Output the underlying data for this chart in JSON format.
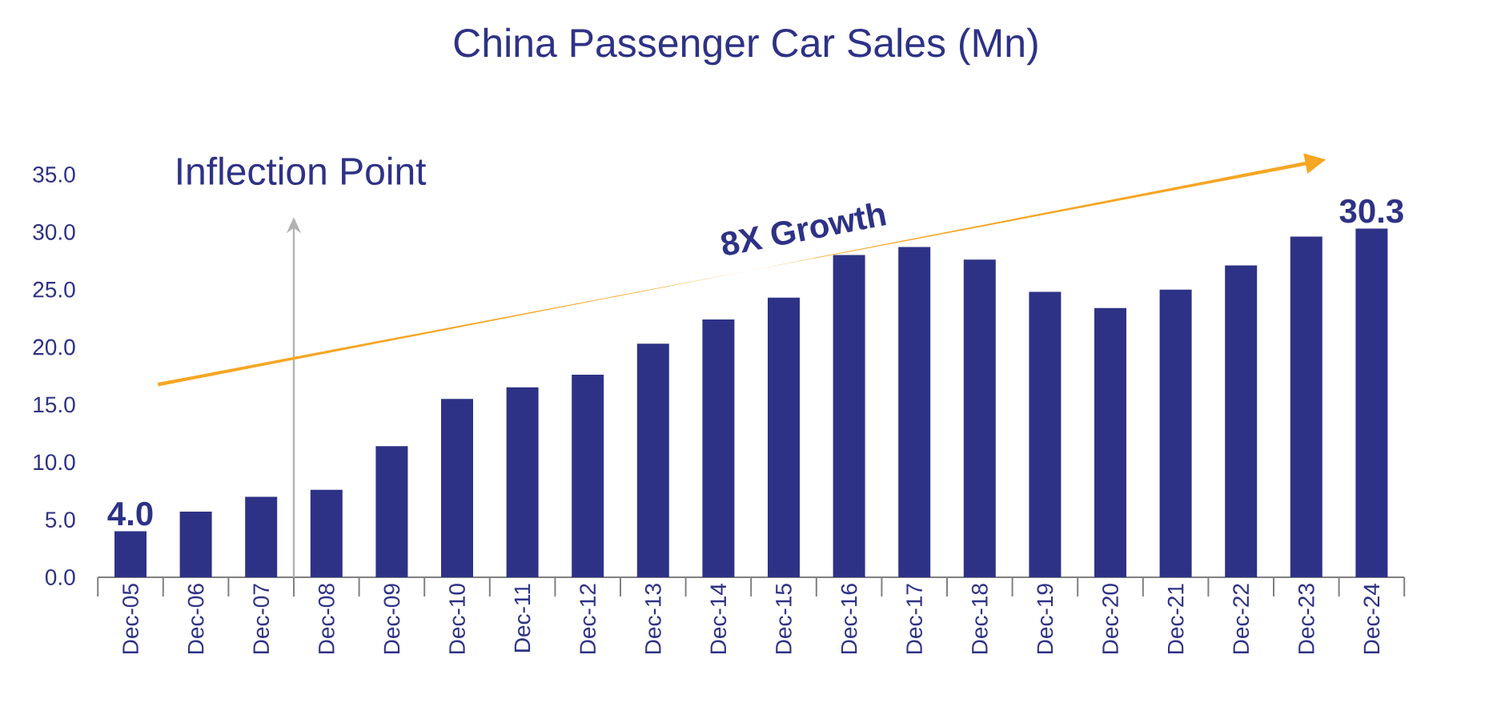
{
  "chart_data": {
    "type": "bar",
    "title": "China Passenger Car Sales (Mn)",
    "categories": [
      "Dec-05",
      "Dec-06",
      "Dec-07",
      "Dec-08",
      "Dec-09",
      "Dec-10",
      "Dec-11",
      "Dec-12",
      "Dec-13",
      "Dec-14",
      "Dec-15",
      "Dec-16",
      "Dec-17",
      "Dec-18",
      "Dec-19",
      "Dec-20",
      "Dec-21",
      "Dec-22",
      "Dec-23",
      "Dec-24"
    ],
    "values": [
      4.0,
      5.7,
      7.0,
      7.6,
      11.4,
      15.5,
      16.5,
      17.6,
      20.3,
      22.4,
      24.3,
      28.0,
      28.7,
      27.6,
      24.8,
      23.4,
      25.0,
      27.1,
      29.6,
      30.3
    ],
    "value_labels": [
      "4.0",
      null,
      null,
      null,
      null,
      null,
      null,
      null,
      null,
      null,
      null,
      null,
      null,
      null,
      null,
      null,
      null,
      null,
      null,
      "30.3"
    ],
    "color": "#2e3286",
    "ylim": [
      0,
      35
    ],
    "yticks": [
      {
        "value": 0,
        "label": "0.0"
      },
      {
        "value": 5,
        "label": "5.0"
      },
      {
        "value": 10,
        "label": "10.0"
      },
      {
        "value": 15,
        "label": "15.0"
      },
      {
        "value": 20,
        "label": "20.0"
      },
      {
        "value": 25,
        "label": "25.0"
      },
      {
        "value": 30,
        "label": "30.0"
      },
      {
        "value": 35,
        "label": "35.0"
      }
    ],
    "annotations": [
      "Inflection Point",
      "8X Growth"
    ]
  }
}
